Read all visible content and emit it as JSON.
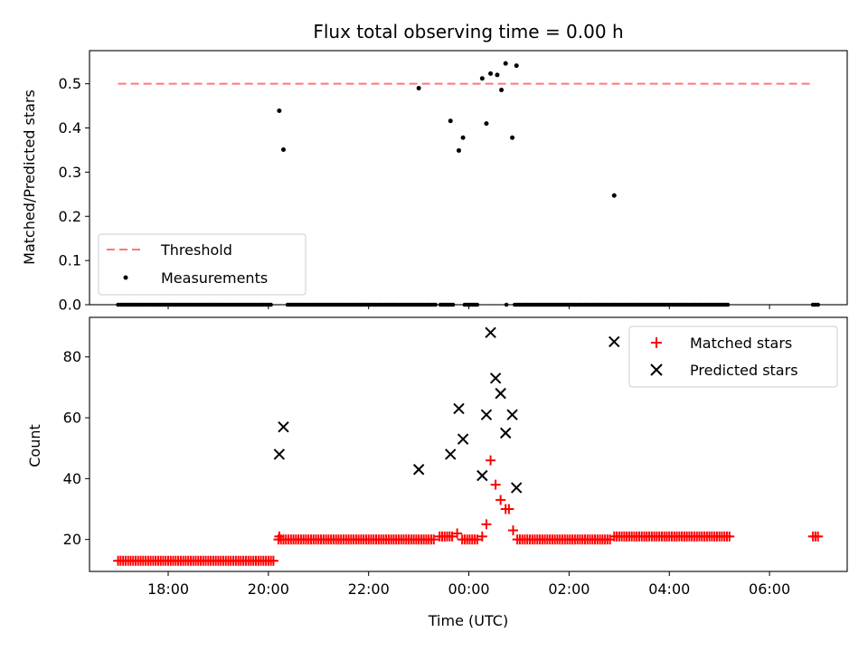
{
  "chart_data": [
    {
      "type": "scatter",
      "title": "Flux total observing time = 0.00 h",
      "xlabel": "",
      "ylabel": "Matched/Predicted stars",
      "ylim": [
        0,
        0.575
      ],
      "yticks": [
        "0.0",
        "0.1",
        "0.2",
        "0.3",
        "0.4",
        "0.5"
      ],
      "grid": false,
      "legend": "lower-left",
      "threshold": {
        "name": "Threshold",
        "value": 0.5,
        "x_start": "17:00",
        "x_end": "06:53",
        "color": "#ff7777"
      },
      "series": [
        {
          "name": "Measurements",
          "color": "#000000",
          "points": [
            [
              "20:13",
              0.439
            ],
            [
              "20:18",
              0.351
            ],
            [
              "23:00",
              0.49
            ],
            [
              "23:38",
              0.416
            ],
            [
              "23:48",
              0.349
            ],
            [
              "23:53",
              0.378
            ],
            [
              "00:16",
              0.512
            ],
            [
              "00:21",
              0.41
            ],
            [
              "00:26",
              0.523
            ],
            [
              "00:34",
              0.52
            ],
            [
              "00:39",
              0.486
            ],
            [
              "00:44",
              0.546
            ],
            [
              "00:52",
              0.378
            ],
            [
              "00:57",
              0.541
            ],
            [
              "02:54",
              0.247
            ]
          ],
          "zero_ranges": [
            [
              "17:00",
              "20:05"
            ],
            [
              "20:23",
              "23:20"
            ],
            [
              "23:26",
              "23:42"
            ],
            [
              "23:55",
              "00:12"
            ],
            [
              "00:45",
              "00:46"
            ],
            [
              "00:55",
              "05:12"
            ],
            [
              "06:52",
              "06:58"
            ]
          ]
        }
      ]
    },
    {
      "type": "scatter",
      "title": "",
      "xlabel": "Time (UTC)",
      "ylabel": "Count",
      "ylim": [
        9.5,
        93
      ],
      "yticks": [
        "20",
        "40",
        "60",
        "80"
      ],
      "xticks": [
        "18:00",
        "20:00",
        "22:00",
        "00:00",
        "02:00",
        "04:00",
        "06:00"
      ],
      "xlim_hours": [
        16.43,
        31.55
      ],
      "grid": false,
      "legend": "upper-right",
      "series": [
        {
          "name": "Matched stars",
          "marker": "plus",
          "color": "#ff0000",
          "points": [
            [
              "23:46",
              22
            ],
            [
              "00:16",
              21
            ],
            [
              "00:21",
              25
            ],
            [
              "00:26",
              46
            ],
            [
              "00:32",
              38
            ],
            [
              "00:38",
              33
            ],
            [
              "00:44",
              30
            ],
            [
              "00:48",
              30
            ],
            [
              "00:53",
              23
            ]
          ],
          "ranges": [
            {
              "from": "17:00",
              "to": "20:07",
              "value": 13
            },
            {
              "from": "20:12",
              "to": "23:20",
              "value": 20
            },
            {
              "from": "23:25",
              "to": "23:40",
              "value": 21
            },
            {
              "from": "23:52",
              "to": "00:12",
              "value": 20
            },
            {
              "from": "00:58",
              "to": "02:50",
              "value": 20
            },
            {
              "from": "02:54",
              "to": "05:12",
              "value": 21
            },
            {
              "from": "06:52",
              "to": "06:58",
              "value": 21
            }
          ],
          "extra_points": [
            [
              "20:13",
              21
            ],
            [
              "20:18",
              20
            ]
          ]
        },
        {
          "name": "Predicted stars",
          "marker": "x",
          "color": "#000000",
          "points": [
            [
              "20:13",
              48
            ],
            [
              "20:18",
              57
            ],
            [
              "23:00",
              43
            ],
            [
              "23:38",
              48
            ],
            [
              "23:48",
              63
            ],
            [
              "23:53",
              53
            ],
            [
              "00:16",
              41
            ],
            [
              "00:21",
              61
            ],
            [
              "00:26",
              88
            ],
            [
              "00:32",
              73
            ],
            [
              "00:38",
              68
            ],
            [
              "00:44",
              55
            ],
            [
              "00:52",
              61
            ],
            [
              "00:57",
              37
            ],
            [
              "02:54",
              85
            ]
          ]
        }
      ]
    }
  ]
}
